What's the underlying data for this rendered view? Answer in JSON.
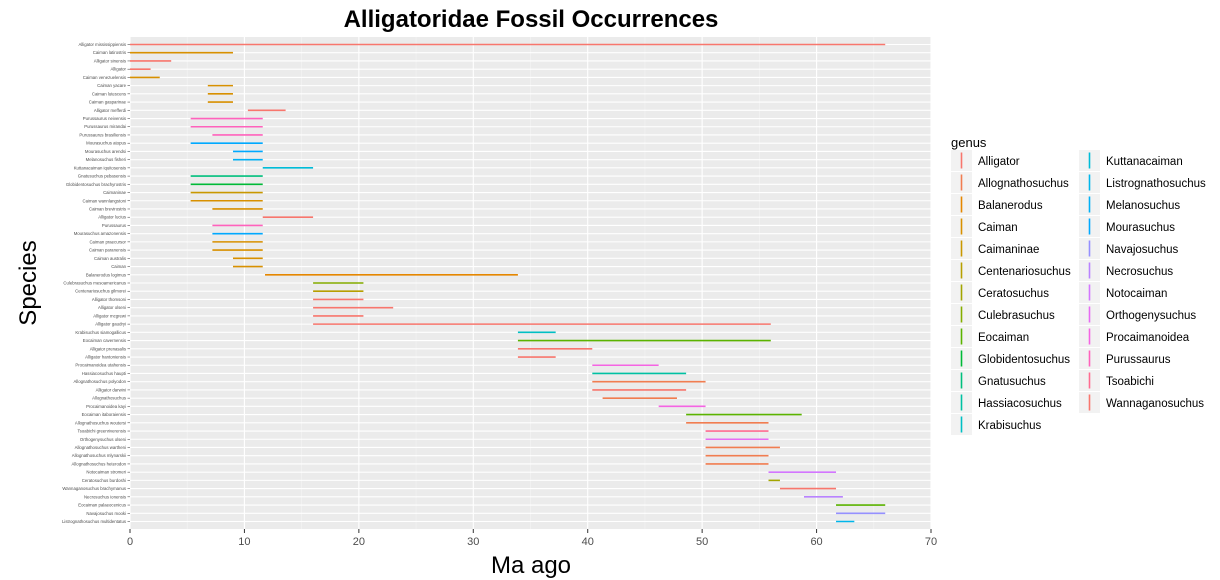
{
  "chart_data": {
    "type": "range-bar",
    "title": "Alligatoridae Fossil Occurrences",
    "xlabel": "Ma ago",
    "ylabel": "Species",
    "xlim": [
      0,
      70
    ],
    "xticks": [
      0,
      10,
      20,
      30,
      40,
      50,
      60,
      70
    ],
    "grid": true,
    "legend_position": "right",
    "legend_title": "genus",
    "genera": [
      {
        "name": "Alligator",
        "color": "#F8766D"
      },
      {
        "name": "Allognathosuchus",
        "color": "#F17D50"
      },
      {
        "name": "Balanerodus",
        "color": "#E58700"
      },
      {
        "name": "Caiman",
        "color": "#D89000"
      },
      {
        "name": "Caimaninae",
        "color": "#C99800"
      },
      {
        "name": "Centenariosuchus",
        "color": "#B79F00"
      },
      {
        "name": "Ceratosuchus",
        "color": "#A3A500"
      },
      {
        "name": "Culebrasuchus",
        "color": "#85AD00"
      },
      {
        "name": "Eocaiman",
        "color": "#5BB300"
      },
      {
        "name": "Globidentosuchus",
        "color": "#00BA38"
      },
      {
        "name": "Gnatusuchus",
        "color": "#00BF7D"
      },
      {
        "name": "Hassiacosuchus",
        "color": "#00C1A3"
      },
      {
        "name": "Krabisuchus",
        "color": "#00BFC4"
      },
      {
        "name": "Kuttanacaiman",
        "color": "#00BCD8"
      },
      {
        "name": "Listrognathosuchus",
        "color": "#00B6EB"
      },
      {
        "name": "Melanosuchus",
        "color": "#00B0F6"
      },
      {
        "name": "Mourasuchus",
        "color": "#00A9FF"
      },
      {
        "name": "Navajosuchus",
        "color": "#9590FF"
      },
      {
        "name": "Necrosuchus",
        "color": "#B983FF"
      },
      {
        "name": "Notocaiman",
        "color": "#D376FF"
      },
      {
        "name": "Orthogenysuchus",
        "color": "#E76BF3"
      },
      {
        "name": "Procaimanoidea",
        "color": "#F564E3"
      },
      {
        "name": "Purussaurus",
        "color": "#FF62BC"
      },
      {
        "name": "Tsoabichi",
        "color": "#FF6C91"
      },
      {
        "name": "Wannaganosuchus",
        "color": "#F8766D"
      }
    ],
    "series": [
      {
        "species": "Alligator mississippiensis",
        "genus": "Alligator",
        "start": 0,
        "end": 66
      },
      {
        "species": "Caiman latirostris",
        "genus": "Caiman",
        "start": 0,
        "end": 9
      },
      {
        "species": "Alligator sinensis",
        "genus": "Alligator",
        "start": 0,
        "end": 3.6
      },
      {
        "species": "Alligator",
        "genus": "Alligator",
        "start": 0,
        "end": 1.8
      },
      {
        "species": "Caiman venezuelensis",
        "genus": "Caiman",
        "start": 0,
        "end": 2.6
      },
      {
        "species": "Caiman yacare",
        "genus": "Caiman",
        "start": 6.8,
        "end": 9
      },
      {
        "species": "Caiman lutescens",
        "genus": "Caiman",
        "start": 6.8,
        "end": 9
      },
      {
        "species": "Caiman gasparinae",
        "genus": "Caiman",
        "start": 6.8,
        "end": 9
      },
      {
        "species": "Alligator mefferdi",
        "genus": "Alligator",
        "start": 10.3,
        "end": 13.6
      },
      {
        "species": "Purussaurus neivensis",
        "genus": "Purussaurus",
        "start": 5.3,
        "end": 11.6
      },
      {
        "species": "Purussaurus mirandai",
        "genus": "Purussaurus",
        "start": 5.3,
        "end": 11.6
      },
      {
        "species": "Purussaurus brasiliensis",
        "genus": "Purussaurus",
        "start": 7.2,
        "end": 11.6
      },
      {
        "species": "Mourasuchus atopus",
        "genus": "Mourasuchus",
        "start": 5.3,
        "end": 11.6
      },
      {
        "species": "Mourasuchus arendsi",
        "genus": "Mourasuchus",
        "start": 9,
        "end": 11.6
      },
      {
        "species": "Melanosuchus fisheri",
        "genus": "Melanosuchus",
        "start": 9,
        "end": 11.6
      },
      {
        "species": "Kuttanacaiman iquitosensis",
        "genus": "Kuttanacaiman",
        "start": 11.6,
        "end": 16
      },
      {
        "species": "Gnatusuchus pebasensis",
        "genus": "Gnatusuchus",
        "start": 5.3,
        "end": 11.6
      },
      {
        "species": "Globidentosuchus brachyrostris",
        "genus": "Globidentosuchus",
        "start": 5.3,
        "end": 11.6
      },
      {
        "species": "Caimaninae",
        "genus": "Caimaninae",
        "start": 5.3,
        "end": 11.6
      },
      {
        "species": "Caiman wannlangstoni",
        "genus": "Caiman",
        "start": 5.3,
        "end": 11.6
      },
      {
        "species": "Caiman brevirostris",
        "genus": "Caiman",
        "start": 7.2,
        "end": 11.6
      },
      {
        "species": "Alligator lucius",
        "genus": "Alligator",
        "start": 11.6,
        "end": 16
      },
      {
        "species": "Purussaurus",
        "genus": "Purussaurus",
        "start": 7.2,
        "end": 11.6
      },
      {
        "species": "Mourasuchus amazonensis",
        "genus": "Mourasuchus",
        "start": 7.2,
        "end": 11.6
      },
      {
        "species": "Caiman praecursor",
        "genus": "Caiman",
        "start": 7.2,
        "end": 11.6
      },
      {
        "species": "Caiman paranensis",
        "genus": "Caiman",
        "start": 7.2,
        "end": 11.6
      },
      {
        "species": "Caiman australis",
        "genus": "Caiman",
        "start": 9,
        "end": 11.6
      },
      {
        "species": "Caiman",
        "genus": "Caiman",
        "start": 9,
        "end": 11.6
      },
      {
        "species": "Balanerodus logimus",
        "genus": "Balanerodus",
        "start": 11.8,
        "end": 33.9
      },
      {
        "species": "Culebrasuchus mesoamericanus",
        "genus": "Culebrasuchus",
        "start": 16,
        "end": 20.4
      },
      {
        "species": "Centenariosuchus gilmorei",
        "genus": "Centenariosuchus",
        "start": 16,
        "end": 20.4
      },
      {
        "species": "Alligator thomsoni",
        "genus": "Alligator",
        "start": 16,
        "end": 20.4
      },
      {
        "species": "Alligator olseni",
        "genus": "Alligator",
        "start": 16,
        "end": 23
      },
      {
        "species": "Alligator mcgrewi",
        "genus": "Alligator",
        "start": 16,
        "end": 20.4
      },
      {
        "species": "Alligator gaudryi",
        "genus": "Alligator",
        "start": 16,
        "end": 56
      },
      {
        "species": "Krabisuchus siamogallicus",
        "genus": "Krabisuchus",
        "start": 33.9,
        "end": 37.2
      },
      {
        "species": "Eocaiman cavernensis",
        "genus": "Eocaiman",
        "start": 33.9,
        "end": 56
      },
      {
        "species": "Alligator prenasalis",
        "genus": "Alligator",
        "start": 33.9,
        "end": 40.4
      },
      {
        "species": "Alligator hantoniensis",
        "genus": "Alligator",
        "start": 33.9,
        "end": 37.2
      },
      {
        "species": "Procaimanoidea utahensis",
        "genus": "Procaimanoidea",
        "start": 40.4,
        "end": 46.2
      },
      {
        "species": "Hassiacosuchus haupti",
        "genus": "Hassiacosuchus",
        "start": 40.4,
        "end": 48.6
      },
      {
        "species": "Allognathosuchus polyodon",
        "genus": "Allognathosuchus",
        "start": 40.4,
        "end": 50.3
      },
      {
        "species": "Alligator darwini",
        "genus": "Alligator",
        "start": 40.4,
        "end": 48.6
      },
      {
        "species": "Allognathosuchus",
        "genus": "Allognathosuchus",
        "start": 41.3,
        "end": 47.8
      },
      {
        "species": "Procaimanoidea kayi",
        "genus": "Procaimanoidea",
        "start": 46.2,
        "end": 50.3
      },
      {
        "species": "Eocaiman itaboraiensis",
        "genus": "Eocaiman",
        "start": 48.6,
        "end": 58.7
      },
      {
        "species": "Allognathosuchus woutersi",
        "genus": "Allognathosuchus",
        "start": 48.6,
        "end": 55.8
      },
      {
        "species": "Tsoabichi greenriverensis",
        "genus": "Tsoabichi",
        "start": 50.3,
        "end": 55.8
      },
      {
        "species": "Orthogenysuchus olseni",
        "genus": "Orthogenysuchus",
        "start": 50.3,
        "end": 55.8
      },
      {
        "species": "Allognathosuchus wartheni",
        "genus": "Allognathosuchus",
        "start": 50.3,
        "end": 56.8
      },
      {
        "species": "Allognathosuchus mlynarskii",
        "genus": "Allognathosuchus",
        "start": 50.3,
        "end": 55.8
      },
      {
        "species": "Allognathosuchus heterodon",
        "genus": "Allognathosuchus",
        "start": 50.3,
        "end": 55.8
      },
      {
        "species": "Notocaiman stromeri",
        "genus": "Notocaiman",
        "start": 55.8,
        "end": 61.7
      },
      {
        "species": "Ceratosuchus burdoshi",
        "genus": "Ceratosuchus",
        "start": 55.8,
        "end": 56.8
      },
      {
        "species": "Wannaganosuchus brachymanus",
        "genus": "Wannaganosuchus",
        "start": 56.8,
        "end": 61.7
      },
      {
        "species": "Necrosuchus ionensis",
        "genus": "Necrosuchus",
        "start": 58.9,
        "end": 62.3
      },
      {
        "species": "Eocaiman palaeocenicus",
        "genus": "Eocaiman",
        "start": 61.7,
        "end": 66
      },
      {
        "species": "Navajosuchus mooki",
        "genus": "Navajosuchus",
        "start": 61.7,
        "end": 66
      },
      {
        "species": "Listrognathosuchus multidentatus",
        "genus": "Listrognathosuchus",
        "start": 61.7,
        "end": 63.3
      }
    ]
  }
}
